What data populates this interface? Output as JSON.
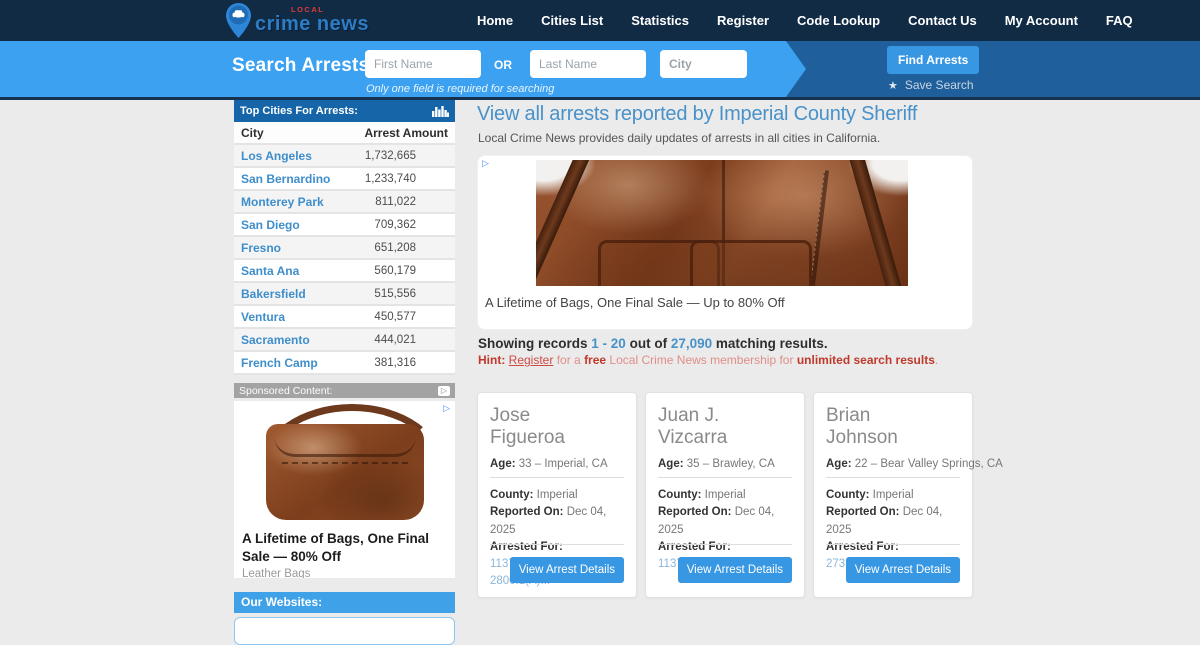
{
  "header": {
    "logo_local": "LOCAL",
    "logo_main": "crime news",
    "nav": [
      "Home",
      "Cities List",
      "Statistics",
      "Register",
      "Code Lookup",
      "Contact Us",
      "My Account",
      "FAQ"
    ]
  },
  "search": {
    "title": "Search Arrests",
    "first_name_placeholder": "First Name",
    "or_label": "OR",
    "last_name_placeholder": "Last Name",
    "city_placeholder": "City",
    "hint": "Only one field is required for searching",
    "find_button": "Find Arrests",
    "save_search": "Save Search"
  },
  "sidebar": {
    "top_cities": {
      "header": "Top Cities For Arrests:",
      "columns": {
        "city": "City",
        "amount": "Arrest Amount"
      },
      "rows": [
        {
          "city": "Los Angeles",
          "amount": "1,732,665"
        },
        {
          "city": "San Bernardino",
          "amount": "1,233,740"
        },
        {
          "city": "Monterey Park",
          "amount": "811,022"
        },
        {
          "city": "San Diego",
          "amount": "709,362"
        },
        {
          "city": "Fresno",
          "amount": "651,208"
        },
        {
          "city": "Santa Ana",
          "amount": "560,179"
        },
        {
          "city": "Bakersfield",
          "amount": "515,556"
        },
        {
          "city": "Ventura",
          "amount": "450,577"
        },
        {
          "city": "Sacramento",
          "amount": "444,021"
        },
        {
          "city": "French Camp",
          "amount": "381,316"
        }
      ]
    },
    "sponsored": {
      "header": "Sponsored Content:",
      "headline": "A Lifetime of Bags, One Final Sale — 80% Off",
      "source": "Leather Bags"
    },
    "our_websites_header": "Our Websites:"
  },
  "main": {
    "title": "View all arrests reported by Imperial County Sheriff",
    "subtitle": "Local Crime News provides daily updates of arrests in all cities in California.",
    "ad_caption": "A Lifetime of Bags, One Final Sale — Up to 80% Off",
    "results": {
      "prefix": "Showing records",
      "range": "1 - 20",
      "middle": "out of",
      "total": "27,090",
      "suffix": "matching results."
    },
    "hint": {
      "label": "Hint:",
      "register": "Register",
      "text1": "for a",
      "free": "free",
      "text2": "Local Crime News membership for",
      "bold_end": "unlimited search results",
      "period": "."
    },
    "card_labels": {
      "age": "Age:",
      "county": "County:",
      "reported": "Reported On:",
      "arrested": "Arrested For:",
      "button": "View Arrest Details"
    },
    "cards": [
      {
        "name_line1": "Jose",
        "name_line2": "Figueroa",
        "age": "33 – Imperial, CA",
        "county": "Imperial",
        "reported": "Dec 04, 2025",
        "charges": "11377(A), 11379(A), 2800.1(A)..."
      },
      {
        "name_line1": "Juan J.",
        "name_line2": "Vizcarra",
        "age": "35 – Brawley, CA",
        "county": "Imperial",
        "reported": "Dec 04, 2025",
        "charges": "11377(A), 11364(A)..."
      },
      {
        "name_line1": "Brian",
        "name_line2": "Johnson",
        "age": "22 – Bear Valley Springs, CA",
        "county": "Imperial",
        "reported": "Dec 04, 2025",
        "charges": "273.5(A), 664/187(A)..."
      }
    ]
  },
  "icons": {
    "logo": "map-pin-with-car",
    "top_cities_header": "bar-chart",
    "sponsored_header": "adchoices-triangle",
    "ads": "adchoices-triangle",
    "save_search": "star"
  },
  "colors": {
    "header_navy": "#112b45",
    "search_light_blue": "#3ba1f0",
    "search_dark_blue": "#1f5f9c",
    "button_blue": "#3897e3",
    "sidebar_header_blue": "#1565a8",
    "link_blue": "#3e8ecb",
    "title_blue": "#4891c9",
    "our_websites_blue": "#3fa2e9",
    "hint_red": "#c0392b",
    "page_background": "#ebebeb"
  }
}
